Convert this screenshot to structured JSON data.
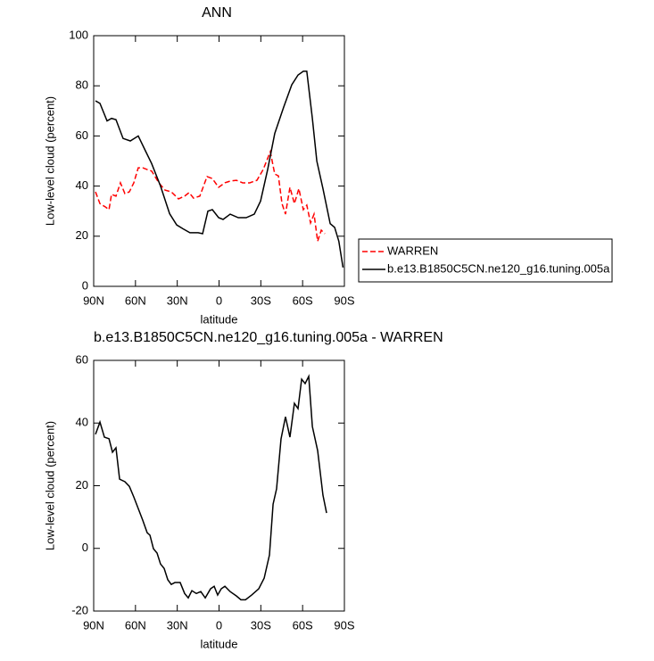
{
  "chart_data": [
    {
      "type": "line",
      "title": "ANN",
      "xlabel": "latitude",
      "ylabel": "Low-level cloud (percent)",
      "xlim": [
        90,
        -90
      ],
      "xticks": [
        {
          "value": 90,
          "label": "90N"
        },
        {
          "value": 60,
          "label": "60N"
        },
        {
          "value": 30,
          "label": "30N"
        },
        0,
        {
          "value": -30,
          "label": "30S"
        },
        {
          "value": -60,
          "label": "60S"
        },
        {
          "value": -90,
          "label": "90S"
        }
      ],
      "ylim": [
        0,
        100
      ],
      "yticks": [
        0,
        20,
        40,
        60,
        80,
        100
      ],
      "legend": "right",
      "series": [
        {
          "name": "WARREN",
          "color": "#ff0000",
          "dashed": true,
          "x": [
            88.7,
            85.5,
            81.7,
            79,
            77.2,
            74,
            70.8,
            67.6,
            64.4,
            61.2,
            58,
            54.8,
            51.6,
            48.4,
            43.2,
            38.8,
            34.3,
            29.1,
            24.7,
            21.5,
            18.3,
            13.8,
            8.6,
            4.8,
            0.3,
            -4.2,
            -8,
            -12.5,
            -17,
            -22,
            -27.2,
            -31.7,
            -36.8,
            -40,
            -42.6,
            -45.2,
            -47.7,
            -50.9,
            -54.1,
            -57.3,
            -60.5,
            -63,
            -65.7,
            -68.2,
            -70.8,
            -73.4,
            -76
          ],
          "values": [
            37.7,
            33,
            31.7,
            30.6,
            36.7,
            36,
            41.3,
            37,
            37.7,
            41.3,
            47.3,
            47.3,
            46.6,
            46,
            41.3,
            38.4,
            37.7,
            34.9,
            36,
            37.4,
            35.2,
            36,
            43.8,
            43,
            39.5,
            41.3,
            42,
            42.3,
            41.3,
            41.3,
            42.3,
            46.6,
            53.7,
            44.8,
            44.1,
            33,
            28.8,
            39.5,
            33,
            39,
            30.6,
            32.4,
            25.3,
            28.8,
            18,
            22.4,
            21
          ]
        },
        {
          "name": "b.e13.B1850C5CN.ne120_g16.tuning.005a",
          "color": "#000000",
          "dashed": false,
          "x": [
            88.7,
            85.5,
            80.4,
            77.2,
            74,
            68.9,
            63.7,
            58,
            52.8,
            48.4,
            42,
            35.5,
            30.4,
            26,
            20.9,
            15,
            11.8,
            8,
            4.8,
            0.3,
            -2.9,
            -8,
            -13.8,
            -19.5,
            -25.3,
            -29.8,
            -34.9,
            -40,
            -46.4,
            -52.2,
            -56.7,
            -60.5,
            -63,
            -67,
            -70.2,
            -74.6,
            -79.8,
            -83,
            -86,
            -89
          ],
          "values": [
            74,
            73,
            66,
            67,
            66.5,
            59,
            58,
            60,
            54,
            49,
            40,
            29,
            24.5,
            23,
            21.4,
            21.4,
            21,
            30,
            30.6,
            27.4,
            26.7,
            28.8,
            27.4,
            27.4,
            28.8,
            34,
            46.6,
            61,
            71.5,
            80.4,
            84.3,
            85.8,
            85.8,
            67,
            50,
            39,
            25,
            23.5,
            18,
            7.5
          ]
        }
      ]
    },
    {
      "type": "line",
      "title": "b.e13.B1850C5CN.ne120_g16.tuning.005a - WARREN",
      "xlabel": "latitude",
      "ylabel": "Low-level cloud (percent)",
      "xlim": [
        90,
        -90
      ],
      "xticks": [
        {
          "value": 90,
          "label": "90N"
        },
        {
          "value": 60,
          "label": "60N"
        },
        {
          "value": 30,
          "label": "30N"
        },
        0,
        {
          "value": -30,
          "label": "30S"
        },
        {
          "value": -60,
          "label": "60S"
        },
        {
          "value": -90,
          "label": "90S"
        }
      ],
      "ylim": [
        -20,
        60
      ],
      "yticks": [
        -20,
        0,
        20,
        40,
        60
      ],
      "series": [
        {
          "color": "#000000",
          "dashed": false,
          "x": [
            88.7,
            85.5,
            82.3,
            79,
            76.5,
            74,
            71.4,
            67.6,
            64.4,
            61.2,
            58,
            54.8,
            51.6,
            49.6,
            47.1,
            44.5,
            42,
            39.4,
            36.8,
            34.3,
            31.7,
            27.9,
            24.7,
            22.1,
            19.5,
            16.3,
            13.1,
            9.9,
            6.1,
            3.5,
            1,
            -1.6,
            -4.2,
            -8,
            -12.5,
            -15.7,
            -19,
            -23.4,
            -28.5,
            -32.4,
            -36.2,
            -38.8,
            -41.3,
            -44.5,
            -47.7,
            -50.9,
            -54.1,
            -56.7,
            -59.3,
            -61.8,
            -64.4,
            -67,
            -70.8,
            -74.6,
            -77.2
          ],
          "values": [
            36.4,
            40.3,
            35.5,
            35,
            30.7,
            32.1,
            22.1,
            21.3,
            19.8,
            16.4,
            12.7,
            9,
            5,
            4.2,
            -0.1,
            -1.5,
            -5,
            -6.4,
            -10,
            -11.5,
            -10.9,
            -10.9,
            -14.4,
            -15.8,
            -13.5,
            -14.4,
            -13.8,
            -15.8,
            -12.9,
            -12.1,
            -14.9,
            -12.9,
            -12.1,
            -13.8,
            -15.2,
            -16.4,
            -16.4,
            -14.9,
            -12.9,
            -9.5,
            -2.1,
            14.1,
            19,
            34.9,
            42,
            35.5,
            46.3,
            44.6,
            54,
            52.6,
            54.9,
            38.9,
            31.2,
            17,
            11.3
          ]
        }
      ]
    }
  ]
}
